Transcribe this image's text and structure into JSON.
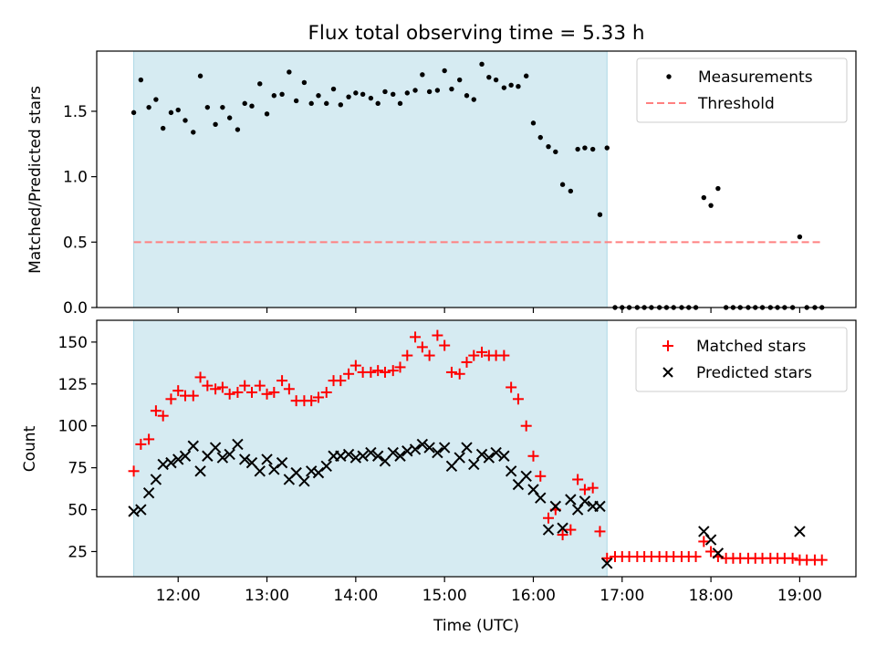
{
  "chart_data": {
    "type": "scatter",
    "title": "Flux total observing time = 5.33 h",
    "xlabel": "Time (UTC)",
    "xlim": [
      11.083,
      19.633
    ],
    "xticks": [
      {
        "value": 12,
        "label": "12:00"
      },
      {
        "value": 13,
        "label": "13:00"
      },
      {
        "value": 14,
        "label": "14:00"
      },
      {
        "value": 15,
        "label": "15:00"
      },
      {
        "value": 16,
        "label": "16:00"
      },
      {
        "value": 17,
        "label": "17:00"
      },
      {
        "value": 18,
        "label": "18:00"
      },
      {
        "value": 19,
        "label": "19:00"
      }
    ],
    "observing_span": [
      11.5,
      16.83
    ],
    "top": {
      "ylabel": "Matched/Predicted stars",
      "ylim": [
        0,
        1.96
      ],
      "yticks": [
        {
          "value": 0.0,
          "label": "0.0"
        },
        {
          "value": 0.5,
          "label": "0.5"
        },
        {
          "value": 1.0,
          "label": "1.0"
        },
        {
          "value": 1.5,
          "label": "1.5"
        }
      ],
      "legend_position": "top-right",
      "threshold": {
        "name": "Threshold",
        "value": 0.5,
        "x_range": [
          11.5,
          19.25
        ],
        "color": "#ff8080"
      },
      "measurements": {
        "name": "Measurements",
        "color": "#000000",
        "x": [
          11.5,
          11.58,
          11.67,
          11.75,
          11.83,
          11.92,
          12.0,
          12.08,
          12.17,
          12.25,
          12.33,
          12.42,
          12.5,
          12.58,
          12.67,
          12.75,
          12.83,
          12.92,
          13.0,
          13.08,
          13.17,
          13.25,
          13.33,
          13.42,
          13.5,
          13.58,
          13.67,
          13.75,
          13.83,
          13.92,
          14.0,
          14.08,
          14.17,
          14.25,
          14.33,
          14.42,
          14.5,
          14.58,
          14.67,
          14.75,
          14.83,
          14.92,
          15.0,
          15.08,
          15.17,
          15.25,
          15.33,
          15.42,
          15.5,
          15.58,
          15.67,
          15.75,
          15.83,
          15.92,
          16.0,
          16.08,
          16.17,
          16.25,
          16.33,
          16.42,
          16.5,
          16.58,
          16.67,
          16.75,
          16.83,
          16.92,
          17.0,
          17.08,
          17.17,
          17.25,
          17.33,
          17.42,
          17.5,
          17.58,
          17.67,
          17.75,
          17.83,
          17.92,
          18.0,
          18.08,
          18.17,
          18.25,
          18.33,
          18.42,
          18.5,
          18.58,
          18.67,
          18.75,
          18.83,
          18.92,
          19.0,
          19.08,
          19.17,
          19.25
        ],
        "y": [
          1.49,
          1.74,
          1.53,
          1.59,
          1.37,
          1.49,
          1.51,
          1.43,
          1.34,
          1.77,
          1.53,
          1.4,
          1.53,
          1.45,
          1.36,
          1.56,
          1.54,
          1.71,
          1.48,
          1.62,
          1.63,
          1.8,
          1.58,
          1.72,
          1.56,
          1.62,
          1.56,
          1.67,
          1.55,
          1.61,
          1.64,
          1.63,
          1.6,
          1.56,
          1.65,
          1.63,
          1.56,
          1.64,
          1.66,
          1.78,
          1.65,
          1.66,
          1.81,
          1.67,
          1.74,
          1.62,
          1.59,
          1.86,
          1.76,
          1.74,
          1.68,
          1.7,
          1.69,
          1.77,
          1.41,
          1.3,
          1.23,
          1.19,
          0.94,
          0.89,
          1.21,
          1.22,
          1.21,
          0.71,
          1.22,
          0.0,
          0.0,
          0.0,
          0.0,
          0.0,
          0.0,
          0.0,
          0.0,
          0.0,
          0.0,
          0.0,
          0.0,
          0.84,
          0.78,
          0.91,
          0.0,
          0.0,
          0.0,
          0.0,
          0.0,
          0.0,
          0.0,
          0.0,
          0.0,
          0.0,
          0.54,
          0.0,
          0.0,
          0.0
        ]
      }
    },
    "bottom": {
      "ylabel": "Count",
      "ylim": [
        10,
        163
      ],
      "yticks": [
        {
          "value": 25,
          "label": "25"
        },
        {
          "value": 50,
          "label": "50"
        },
        {
          "value": 75,
          "label": "75"
        },
        {
          "value": 100,
          "label": "100"
        },
        {
          "value": 125,
          "label": "125"
        },
        {
          "value": 150,
          "label": "150"
        }
      ],
      "legend_position": "top-right",
      "matched": {
        "name": "Matched stars",
        "color": "#ff0000",
        "marker": "plus",
        "x": [
          11.5,
          11.58,
          11.67,
          11.75,
          11.83,
          11.92,
          12.0,
          12.08,
          12.17,
          12.25,
          12.33,
          12.42,
          12.5,
          12.58,
          12.67,
          12.75,
          12.83,
          12.92,
          13.0,
          13.08,
          13.17,
          13.25,
          13.33,
          13.42,
          13.5,
          13.58,
          13.67,
          13.75,
          13.83,
          13.92,
          14.0,
          14.08,
          14.17,
          14.25,
          14.33,
          14.42,
          14.5,
          14.58,
          14.67,
          14.75,
          14.83,
          14.92,
          15.0,
          15.08,
          15.17,
          15.25,
          15.33,
          15.42,
          15.5,
          15.58,
          15.67,
          15.75,
          15.83,
          15.92,
          16.0,
          16.08,
          16.17,
          16.25,
          16.33,
          16.42,
          16.5,
          16.58,
          16.67,
          16.75,
          16.83,
          16.92,
          17.0,
          17.08,
          17.17,
          17.25,
          17.33,
          17.42,
          17.5,
          17.58,
          17.67,
          17.75,
          17.83,
          17.92,
          18.0,
          18.08,
          18.17,
          18.25,
          18.33,
          18.42,
          18.5,
          18.58,
          18.67,
          18.75,
          18.83,
          18.92,
          19.0,
          19.08,
          19.17,
          19.25
        ],
        "y": [
          73,
          89,
          92,
          109,
          106,
          116,
          121,
          118,
          118,
          129,
          124,
          122,
          123,
          119,
          120,
          124,
          120,
          124,
          119,
          120,
          127,
          122,
          115,
          115,
          115,
          117,
          120,
          127,
          127,
          131,
          136,
          132,
          132,
          133,
          132,
          133,
          135,
          142,
          153,
          147,
          142,
          154,
          148,
          132,
          131,
          138,
          142,
          144,
          142,
          142,
          142,
          123,
          116,
          100,
          82,
          70,
          45,
          50,
          35,
          38,
          68,
          62,
          63,
          37,
          21,
          22,
          22,
          22,
          22,
          22,
          22,
          22,
          22,
          22,
          22,
          22,
          22,
          31,
          25,
          22,
          21,
          21,
          21,
          21,
          21,
          21,
          21,
          21,
          21,
          21,
          20,
          20,
          20,
          20
        ]
      },
      "predicted": {
        "name": "Predicted stars",
        "color": "#000000",
        "marker": "x",
        "x": [
          11.5,
          11.58,
          11.67,
          11.75,
          11.83,
          11.92,
          12.0,
          12.08,
          12.17,
          12.25,
          12.33,
          12.42,
          12.5,
          12.58,
          12.67,
          12.75,
          12.83,
          12.92,
          13.0,
          13.08,
          13.17,
          13.25,
          13.33,
          13.42,
          13.5,
          13.58,
          13.67,
          13.75,
          13.83,
          13.92,
          14.0,
          14.08,
          14.17,
          14.25,
          14.33,
          14.42,
          14.5,
          14.58,
          14.67,
          14.75,
          14.83,
          14.92,
          15.0,
          15.08,
          15.17,
          15.25,
          15.33,
          15.42,
          15.5,
          15.58,
          15.67,
          15.75,
          15.83,
          15.92,
          16.0,
          16.08,
          16.17,
          16.25,
          16.33,
          16.42,
          16.5,
          16.58,
          16.67,
          16.75,
          16.83,
          17.92,
          18.0,
          18.08,
          19.0
        ],
        "y": [
          49,
          50,
          60,
          68,
          77,
          78,
          80,
          82,
          88,
          73,
          82,
          87,
          81,
          83,
          89,
          80,
          78,
          73,
          80,
          74,
          78,
          68,
          72,
          67,
          73,
          72,
          76,
          82,
          82,
          83,
          81,
          82,
          84,
          82,
          79,
          84,
          82,
          85,
          86,
          89,
          87,
          84,
          87,
          76,
          81,
          87,
          77,
          83,
          81,
          84,
          82,
          73,
          65,
          70,
          62,
          57,
          38,
          52,
          39,
          56,
          50,
          55,
          52,
          52,
          18,
          37,
          32,
          24,
          37
        ]
      }
    }
  }
}
